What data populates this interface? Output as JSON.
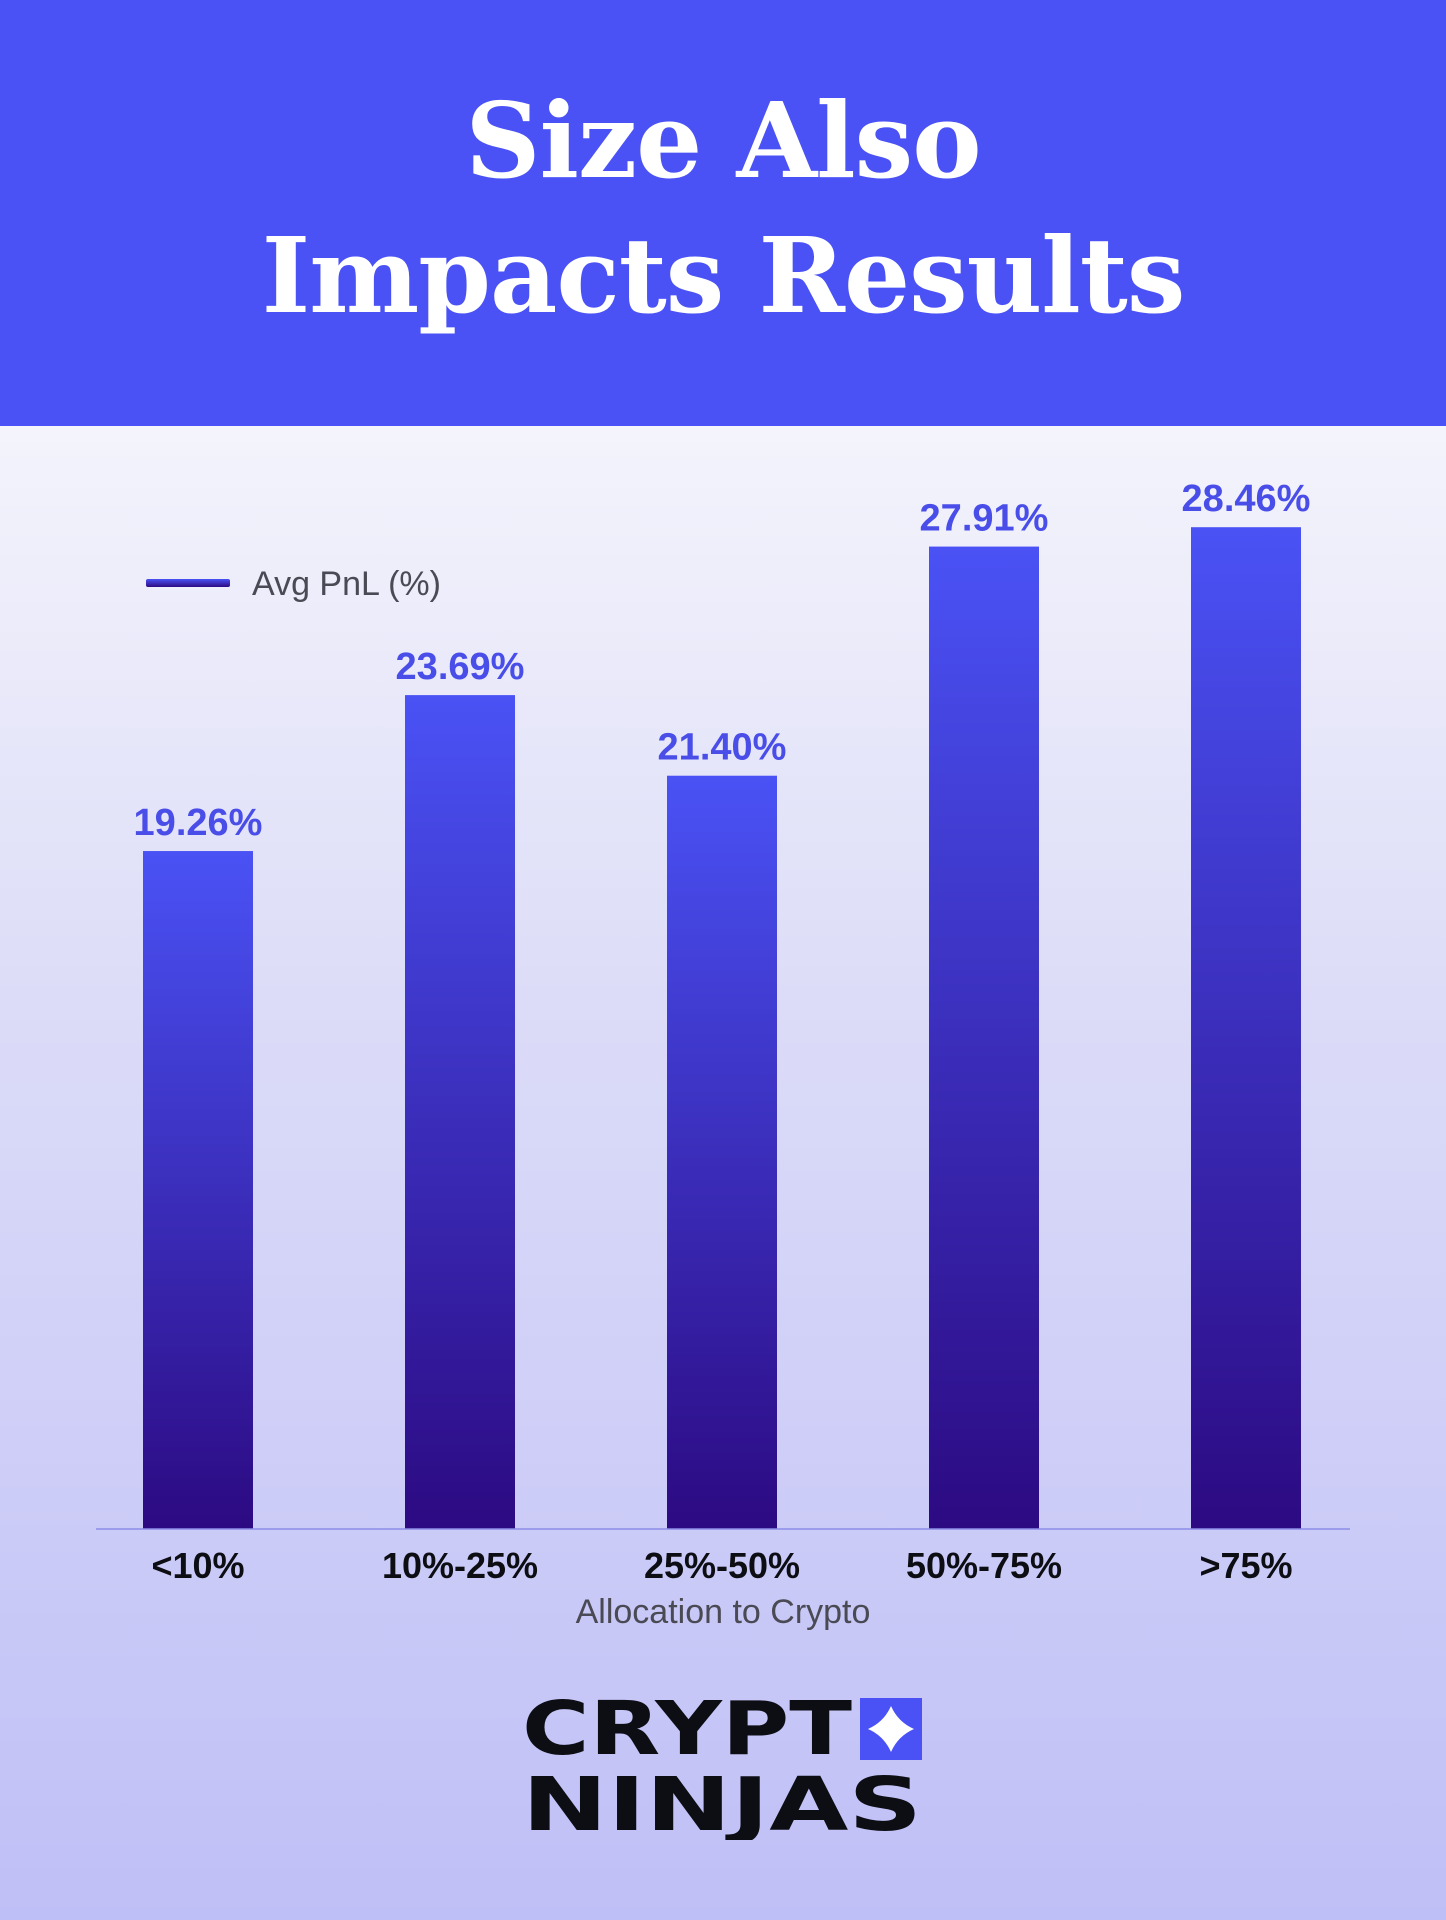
{
  "header": {
    "title_line1": "Size Also",
    "title_line2": "Impacts Results"
  },
  "colors": {
    "header_bg": "#4a52f5",
    "bar_top": "#4a52f5",
    "bar_bottom": "#2c0a82",
    "value_label": "#4a4ee8",
    "axis_line": "#8b8ee8",
    "logo_accent": "#4a52f5"
  },
  "chart_data": {
    "type": "bar",
    "categories": [
      "<10%",
      "10%-25%",
      "25%-50%",
      "50%-75%",
      ">75%"
    ],
    "series": [
      {
        "name": "Avg PnL (%)",
        "values": [
          19.26,
          23.69,
          21.4,
          27.91,
          28.46
        ]
      }
    ],
    "data_labels": [
      "19.26%",
      "23.69%",
      "21.40%",
      "27.91%",
      "28.46%"
    ],
    "title": "Size Also Impacts Results",
    "xlabel": "Allocation to Crypto",
    "ylabel": "",
    "ylim": [
      0,
      29
    ],
    "grid": false,
    "legend": "top-left"
  },
  "logo": {
    "line1": "CRYPT",
    "line2": "NINJAS",
    "icon": "four-point-star-icon"
  }
}
